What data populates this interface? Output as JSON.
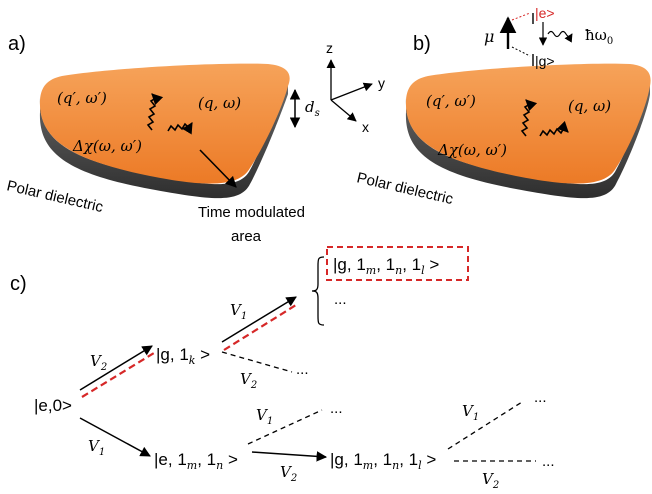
{
  "panels": {
    "a": {
      "label": "a)",
      "mode_left": "(q′, ω′)",
      "mode_right": "(q, ω)",
      "susceptibility": "Δχ(ω, ω′)",
      "material": "Polar dielectric",
      "thickness": "d",
      "thickness_sub": "s",
      "region_line1": "Time modulated",
      "region_line2": "area",
      "axis_z": "z",
      "axis_y": "y",
      "axis_x": "x"
    },
    "b": {
      "label": "b)",
      "mode_left": "(q′, ω′)",
      "mode_right": "(q, ω)",
      "susceptibility": "Δχ(ω, ω′)",
      "material": "Polar dielectric",
      "dipole": "μ",
      "excited": "|e>",
      "ground": "|g>",
      "emission": "ħω",
      "emission_sub": "0"
    },
    "c": {
      "label": "c)",
      "initial": "|e,0>",
      "state_g1k": {
        "pre": "|g, 1",
        "sub": "k",
        "post": " >"
      },
      "state_e1m1n": {
        "pre": "|e, 1",
        "sub1": "m",
        "mid": ", 1",
        "sub2": "n",
        "post": " >"
      },
      "state_g1m1n1l": {
        "pre": "|g, 1",
        "sub1": "m",
        "mid1": ", 1",
        "sub2": "n",
        "mid2": ", 1",
        "sub3": "l",
        "post": " >"
      },
      "state_boxed": {
        "pre": "|g, 1",
        "sub1": "m",
        "mid1": ", 1",
        "sub2": "n",
        "mid2": ", 1",
        "sub3": "l",
        "post": " >"
      },
      "coupling_main": "V",
      "coupling_1": "1",
      "coupling_2": "2",
      "ellipsis": "..."
    }
  },
  "colors": {
    "slab_top": "#f28a3a",
    "slab_side": "#4a4a4a",
    "highlight": "#d62828",
    "ink": "#000000"
  }
}
